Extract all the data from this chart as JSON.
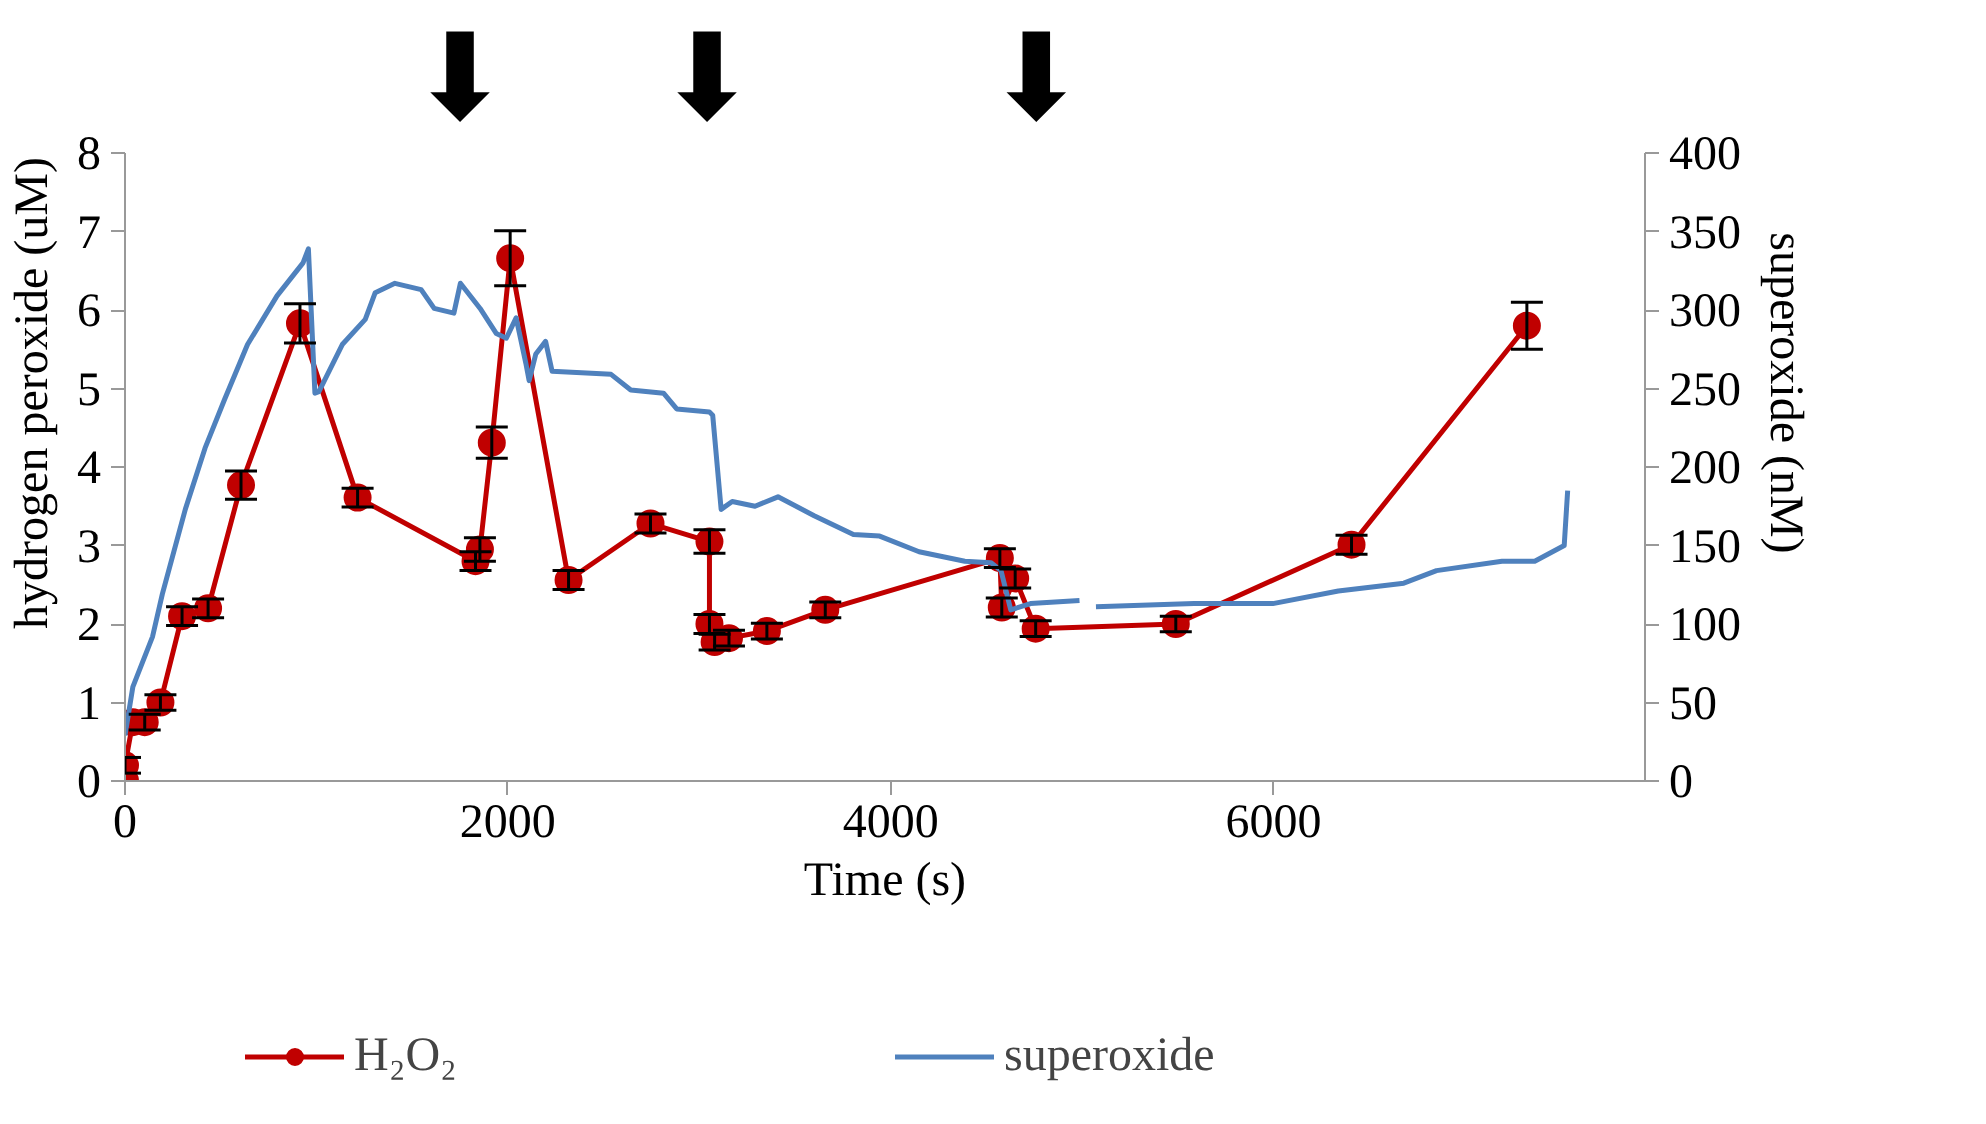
{
  "chart_data": {
    "type": "line",
    "xlabel": "Time (s)",
    "ylabel": "hydrogen peroxide (uM)",
    "y2label": "superoxide (nM)",
    "xlim": [
      0,
      7940
    ],
    "xticks": [
      0,
      2000,
      4000,
      6000
    ],
    "ylim": [
      0,
      8
    ],
    "yticks": [
      0,
      1,
      2,
      3,
      4,
      5,
      6,
      7,
      8
    ],
    "y2lim": [
      0,
      400
    ],
    "y2ticks": [
      0,
      50,
      100,
      150,
      200,
      250,
      300,
      350,
      400
    ],
    "grid": false,
    "legend": "bottom",
    "line_style": "solid",
    "annotations": [
      "⬇",
      "⬇",
      "⬇"
    ],
    "series": [
      {
        "name": "H₂O₂",
        "color": "#c00000",
        "marker": "circle",
        "x": [
          0,
          0,
          41,
          103,
          185,
          298,
          434,
          606,
          914,
          1215,
          1831,
          1854,
          1916,
          2012,
          2317,
          2745,
          3053,
          3053,
          3080,
          3155,
          3353,
          3658,
          4570,
          4580,
          4650,
          4757,
          5489,
          6407,
          7323
        ],
        "values": [
          0.0,
          0.2,
          0.75,
          0.75,
          1.0,
          2.1,
          2.2,
          3.77,
          5.83,
          3.61,
          2.8,
          2.95,
          4.31,
          6.66,
          2.56,
          3.28,
          3.05,
          2.0,
          1.77,
          1.82,
          1.91,
          2.18,
          2.84,
          2.21,
          2.58,
          1.94,
          2.0,
          3.01,
          5.8
        ],
        "errors": [
          null,
          0.1,
          null,
          0.1,
          0.1,
          0.12,
          0.12,
          0.18,
          0.25,
          0.12,
          0.12,
          0.15,
          0.2,
          0.35,
          0.12,
          0.12,
          0.15,
          0.12,
          0.1,
          0.1,
          0.1,
          0.1,
          0.12,
          0.12,
          0.12,
          0.1,
          0.1,
          0.12,
          0.3
        ]
      },
      {
        "name": "superoxide",
        "color": "#4f81bd",
        "marker": "none",
        "axis": "y2",
        "x": [
          0,
          41,
          144,
          195,
          315,
          418,
          520,
          640,
          794,
          930,
          958,
          992,
          1013,
          1135,
          1255,
          1307,
          1410,
          1547,
          1615,
          1718,
          1752,
          1855,
          1940,
          1992,
          2043,
          2094,
          2111,
          2146,
          2197,
          2231,
          2539,
          2642,
          2813,
          2882,
          3053,
          3070,
          3114,
          3172,
          3291,
          3411,
          3600,
          3805,
          3942,
          4148,
          4387,
          4524,
          4576,
          4627,
          4730,
          4986,
          5030,
          5072,
          5585,
          5996,
          6338,
          6680,
          6851,
          7193,
          7364,
          7518,
          7536
        ],
        "values": [
          29,
          60,
          92,
          119,
          173,
          212,
          243,
          278,
          309,
          330,
          339,
          247,
          248,
          278,
          294,
          311,
          317,
          313,
          301,
          298,
          317,
          301,
          285,
          282,
          295,
          266,
          255,
          272,
          280,
          261,
          259,
          249,
          247,
          237,
          235,
          233,
          173,
          178,
          175,
          181,
          169,
          157,
          156,
          146,
          140,
          139,
          134,
          109,
          113,
          115,
          null,
          111,
          113,
          113,
          121,
          126,
          134,
          140,
          140,
          150,
          185
        ]
      }
    ]
  }
}
